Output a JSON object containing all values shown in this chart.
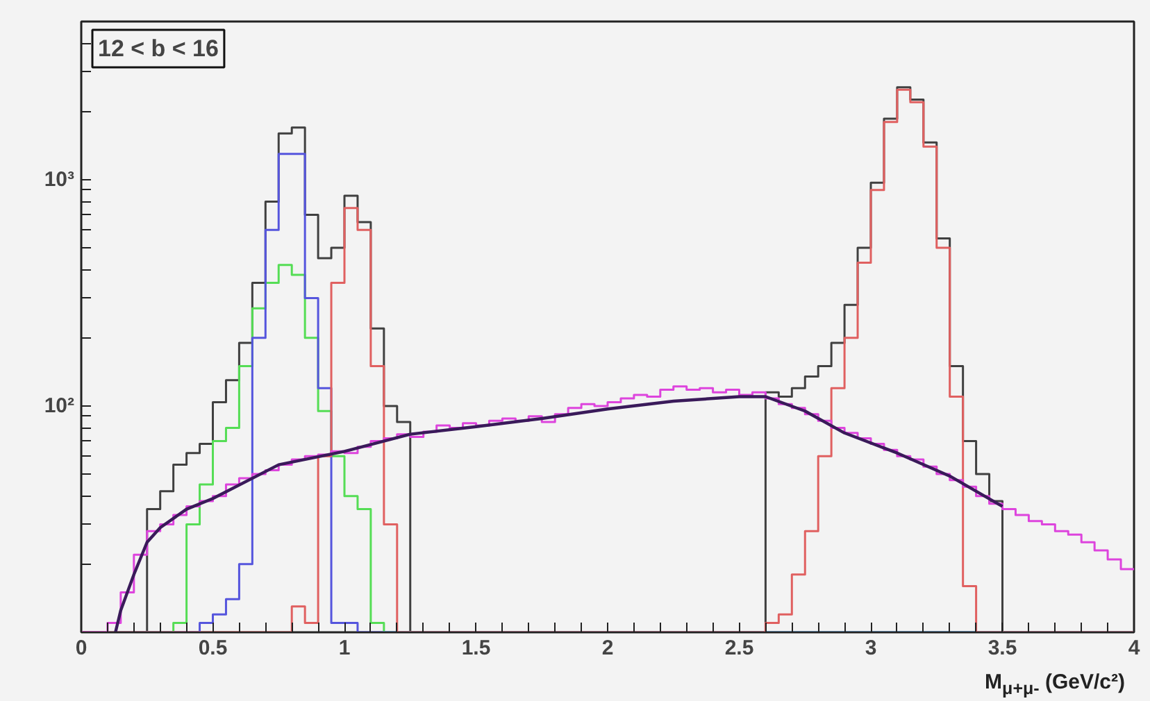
{
  "chart_data": {
    "type": "histogram",
    "xlabel": "M$_{μ+μ-}$ (GeV/c²)",
    "annotations": [
      "12 < b < 16"
    ],
    "log": "y",
    "grid": false,
    "xlim": [
      0,
      4
    ],
    "ylim": [
      10,
      5000
    ],
    "xticks": [
      0,
      {
        "value": 0.1,
        "label": null
      },
      {
        "value": 0.2,
        "label": null
      },
      {
        "value": 0.3,
        "label": null
      },
      {
        "value": 0.4,
        "label": null
      },
      0.5,
      {
        "value": 0.6,
        "label": null
      },
      {
        "value": 0.7,
        "label": null
      },
      {
        "value": 0.8,
        "label": null
      },
      {
        "value": 0.9,
        "label": null
      },
      1,
      {
        "value": 1.1,
        "label": null
      },
      {
        "value": 1.2,
        "label": null
      },
      {
        "value": 1.3,
        "label": null
      },
      {
        "value": 1.4,
        "label": null
      },
      1.5,
      {
        "value": 1.6,
        "label": null
      },
      {
        "value": 1.7,
        "label": null
      },
      {
        "value": 1.8,
        "label": null
      },
      {
        "value": 1.9,
        "label": null
      },
      2,
      {
        "value": 2.1,
        "label": null
      },
      {
        "value": 2.2,
        "label": null
      },
      {
        "value": 2.3,
        "label": null
      },
      {
        "value": 2.4,
        "label": null
      },
      2.5,
      {
        "value": 2.6,
        "label": null
      },
      {
        "value": 2.7,
        "label": null
      },
      {
        "value": 2.8,
        "label": null
      },
      {
        "value": 2.9,
        "label": null
      },
      3,
      {
        "value": 3.1,
        "label": null
      },
      {
        "value": 3.2,
        "label": null
      },
      {
        "value": 3.3,
        "label": null
      },
      {
        "value": 3.4,
        "label": null
      },
      3.5,
      {
        "value": 3.6,
        "label": null
      },
      {
        "value": 3.7,
        "label": null
      },
      {
        "value": 3.8,
        "label": null
      },
      {
        "value": 3.9,
        "label": null
      },
      4
    ],
    "yticks": [
      {
        "value": 20,
        "label": null
      },
      {
        "value": 30,
        "label": null
      },
      {
        "value": 40,
        "label": null
      },
      {
        "value": 50,
        "label": null
      },
      {
        "value": 60,
        "label": null
      },
      {
        "value": 70,
        "label": null
      },
      {
        "value": 80,
        "label": null
      },
      {
        "value": 90,
        "label": null
      },
      {
        "value": 100,
        "label": "10²"
      },
      {
        "value": 200,
        "label": null
      },
      {
        "value": 300,
        "label": null
      },
      {
        "value": 400,
        "label": null
      },
      {
        "value": 500,
        "label": null
      },
      {
        "value": 600,
        "label": null
      },
      {
        "value": 700,
        "label": null
      },
      {
        "value": 800,
        "label": null
      },
      {
        "value": 900,
        "label": null
      },
      {
        "value": 1000,
        "label": "10³"
      },
      {
        "value": 2000,
        "label": null
      },
      {
        "value": 3000,
        "label": null
      },
      {
        "value": 4000,
        "label": null
      }
    ],
    "bins": [
      0,
      0.05,
      0.1,
      0.15,
      0.2,
      0.25,
      0.3,
      0.35,
      0.4,
      0.45,
      0.5,
      0.55,
      0.6,
      0.65,
      0.7,
      0.75,
      0.8,
      0.85,
      0.9,
      0.95,
      1,
      1.05,
      1.1,
      1.15,
      1.2,
      1.25,
      1.3,
      1.35,
      1.4,
      1.45,
      1.5,
      1.55,
      1.6,
      1.65,
      1.7,
      1.75,
      1.8,
      1.85,
      1.9,
      1.95,
      2,
      2.05,
      2.1,
      2.15,
      2.2,
      2.25,
      2.3,
      2.35,
      2.4,
      2.45,
      2.5,
      2.55,
      2.6,
      2.65,
      2.7,
      2.75,
      2.8,
      2.85,
      2.9,
      2.95,
      3,
      3.05,
      3.1,
      3.15,
      3.2,
      3.25,
      3.3,
      3.35,
      3.4,
      3.45,
      3.5,
      3.55,
      3.6,
      3.65,
      3.7,
      3.75,
      3.8,
      3.85,
      3.9,
      3.95,
      4
    ],
    "series": [
      {
        "color": "#404040",
        "values": [
          null,
          null,
          null,
          null,
          null,
          35,
          42,
          55,
          62,
          68,
          104,
          130,
          190,
          350,
          800,
          1600,
          1700,
          700,
          450,
          500,
          850,
          650,
          220,
          100,
          85,
          null,
          null,
          null,
          null,
          null,
          null,
          null,
          null,
          null,
          null,
          null,
          null,
          null,
          null,
          null,
          null,
          null,
          null,
          null,
          null,
          null,
          null,
          null,
          null,
          null,
          null,
          null,
          115,
          110,
          120,
          135,
          150,
          190,
          280,
          500,
          970,
          1860,
          2560,
          2260,
          1460,
          550,
          150,
          70,
          50,
          38,
          null,
          null,
          null,
          null,
          null,
          null,
          null,
          null,
          null,
          null
        ]
      },
      {
        "color": "#55dd55",
        "values": [
          null,
          null,
          null,
          null,
          null,
          null,
          null,
          11,
          30,
          45,
          70,
          80,
          150,
          270,
          350,
          420,
          380,
          200,
          95,
          60,
          40,
          35,
          11,
          null,
          null,
          null,
          null,
          null,
          null,
          null,
          null,
          null,
          null,
          null,
          null,
          null,
          null,
          null,
          null,
          null,
          null,
          null,
          null,
          null,
          null,
          null,
          null,
          null,
          null,
          null,
          null,
          null,
          null,
          null,
          null,
          null,
          null,
          null,
          null,
          null,
          null,
          null,
          null,
          null,
          null,
          null,
          null,
          null,
          null,
          null,
          null,
          null,
          null,
          null,
          null,
          null,
          null,
          null,
          null,
          null
        ]
      },
      {
        "color": "#5555dd",
        "values": [
          null,
          null,
          null,
          null,
          null,
          null,
          null,
          null,
          null,
          11,
          12,
          14,
          20,
          200,
          600,
          1300,
          1300,
          300,
          120,
          11,
          11,
          null,
          null,
          null,
          null,
          null,
          null,
          null,
          null,
          null,
          null,
          null,
          null,
          null,
          null,
          null,
          null,
          null,
          null,
          null,
          null,
          null,
          null,
          null,
          null,
          null,
          null,
          null,
          null,
          null,
          null,
          null,
          null,
          null,
          null,
          null,
          null,
          null,
          null,
          null,
          null,
          null,
          null,
          null,
          null,
          null,
          null,
          null,
          null,
          null,
          null,
          null,
          null,
          null,
          null,
          null,
          null,
          null,
          null,
          null
        ]
      },
      {
        "color": "#e06060",
        "values": [
          null,
          null,
          null,
          null,
          null,
          null,
          null,
          null,
          null,
          null,
          null,
          null,
          null,
          null,
          null,
          null,
          13,
          11,
          60,
          350,
          750,
          600,
          150,
          30,
          null,
          null,
          null,
          null,
          null,
          null,
          null,
          null,
          null,
          null,
          null,
          null,
          null,
          null,
          null,
          null,
          null,
          null,
          null,
          null,
          null,
          null,
          null,
          null,
          null,
          null,
          null,
          null,
          11,
          12,
          18,
          28,
          60,
          120,
          200,
          430,
          900,
          1800,
          2500,
          2200,
          1400,
          500,
          110,
          16,
          null,
          null,
          null,
          null,
          null,
          null,
          null,
          null,
          null,
          null,
          null,
          null
        ]
      },
      {
        "color": "#dd44dd",
        "values": [
          null,
          null,
          11,
          15,
          22,
          28,
          30,
          33,
          36,
          38,
          40,
          45,
          48,
          50,
          52,
          55,
          58,
          60,
          61,
          63,
          62,
          66,
          70,
          72,
          75,
          73,
          77,
          82,
          80,
          84,
          82,
          86,
          88,
          86,
          90,
          85,
          92,
          98,
          102,
          100,
          104,
          108,
          112,
          110,
          118,
          122,
          118,
          120,
          115,
          118,
          112,
          115,
          108,
          102,
          98,
          92,
          86,
          80,
          76,
          72,
          68,
          64,
          60,
          58,
          54,
          50,
          47,
          44,
          40,
          37,
          35,
          33,
          31,
          30,
          28,
          27,
          25,
          23,
          21,
          19
        ]
      },
      {
        "type": "line",
        "color": "#3a1a5a",
        "x": [
          0.13,
          0.15,
          0.2,
          0.25,
          0.3,
          0.4,
          0.5,
          0.75,
          1.0,
          1.25,
          1.5,
          1.75,
          2.0,
          2.25,
          2.5,
          2.6,
          2.75,
          2.9,
          3.1,
          3.3,
          3.5
        ],
        "values": [
          10,
          12.5,
          18,
          25,
          29,
          35,
          39,
          55,
          63,
          75,
          81,
          88,
          97,
          105,
          110,
          110,
          95,
          76,
          62,
          49,
          36
        ]
      }
    ]
  }
}
